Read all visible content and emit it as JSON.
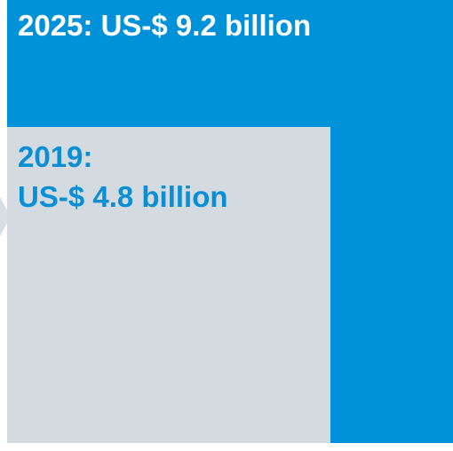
{
  "chart_data": {
    "type": "area",
    "unit": "US-$ billion",
    "series": [
      {
        "year": "2025",
        "value": 9.2,
        "label": "2025: US-$ 9.2 billion",
        "color": "#0092d9"
      },
      {
        "year": "2019",
        "value": 4.8,
        "label_line1": "2019:",
        "label_line2": "US-$ 4.8 billion",
        "color": "#d3dae0",
        "text_color": "#0a8fd6"
      }
    ]
  }
}
